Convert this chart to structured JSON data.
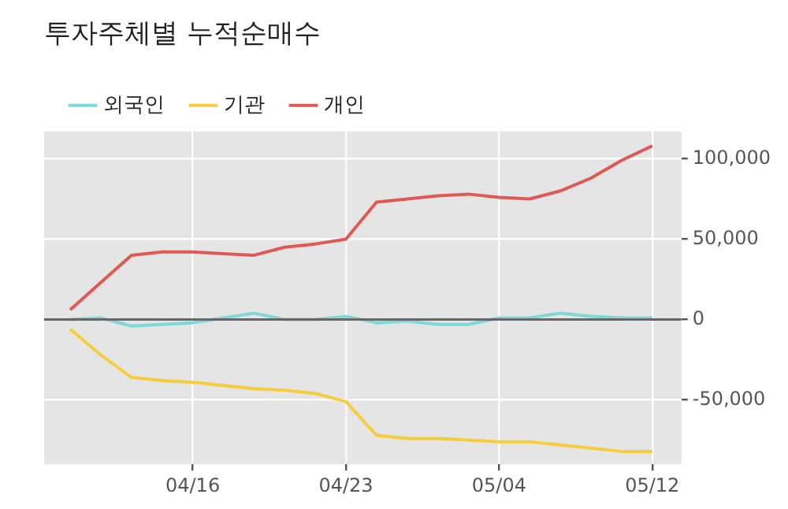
{
  "chart_data": {
    "type": "line",
    "title": "투자주체별 누적순매수",
    "categories": [
      null,
      null,
      null,
      null,
      "04/16",
      null,
      null,
      null,
      null,
      "04/23",
      null,
      null,
      null,
      null,
      "05/04",
      null,
      null,
      null,
      null,
      "05/12"
    ],
    "series": [
      {
        "name": "외국인",
        "color": "#7dd8d8",
        "values": [
          0,
          1000,
          -4000,
          -3000,
          -2000,
          1000,
          4000,
          0,
          0,
          2000,
          -2000,
          -1000,
          -3000,
          -3000,
          1000,
          1000,
          4000,
          2000,
          1000,
          1000
        ]
      },
      {
        "name": "기관",
        "color": "#f7cd3c",
        "values": [
          -6000,
          -22000,
          -36000,
          -38000,
          -39000,
          -41000,
          -43000,
          -44000,
          -46000,
          -51000,
          -72000,
          -74000,
          -74000,
          -75000,
          -76000,
          -76000,
          -78000,
          -80000,
          -82000,
          -82000
        ]
      },
      {
        "name": "개인",
        "color": "#e05a55",
        "values": [
          6000,
          23000,
          40000,
          42000,
          42000,
          41000,
          40000,
          45000,
          47000,
          50000,
          73000,
          75000,
          77000,
          78000,
          76000,
          75000,
          80000,
          88000,
          99000,
          108000
        ]
      }
    ],
    "ylim": [
      -90000,
      117000
    ],
    "yticks": [
      {
        "value": -50000,
        "label": "-50,000"
      },
      0,
      {
        "value": 50000,
        "label": "50,000"
      },
      {
        "value": 100000,
        "label": "100,000"
      }
    ],
    "ref_lines": [
      {
        "axis": "y",
        "value": 0,
        "color": "#666666"
      }
    ],
    "grid": true,
    "legend": "top left",
    "marker": "none",
    "line_style": "solid"
  }
}
